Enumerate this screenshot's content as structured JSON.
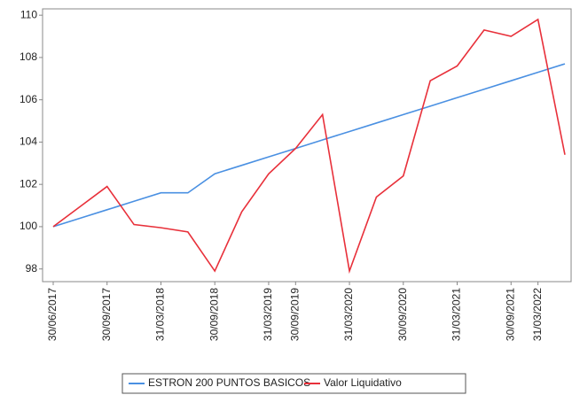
{
  "chart_data": {
    "type": "line",
    "categories": [
      "30/06/2017",
      null,
      "30/09/2017",
      null,
      "31/03/2018",
      null,
      "30/09/2018",
      null,
      "31/03/2019",
      "30/09/2019",
      null,
      "31/03/2020",
      null,
      "30/09/2020",
      null,
      "31/03/2021",
      null,
      "30/09/2021",
      "31/03/2022",
      null
    ],
    "series": [
      {
        "name": "ESTRON 200 PUNTOS BASICOS",
        "color": "#4a90e2",
        "values": [
          100.0,
          100.4,
          100.8,
          101.2,
          101.6,
          101.6,
          102.5,
          102.9,
          103.3,
          103.7,
          104.1,
          104.5,
          104.9,
          105.3,
          105.7,
          106.1,
          106.5,
          106.9,
          107.3,
          107.7
        ]
      },
      {
        "name": "Valor Liquidativo",
        "color": "#e8303a",
        "values": [
          100.0,
          100.95,
          101.9,
          100.1,
          99.95,
          99.75,
          97.9,
          100.7,
          102.5,
          103.7,
          105.3,
          97.9,
          101.4,
          102.4,
          106.9,
          107.6,
          109.3,
          109.0,
          109.8,
          103.4
        ]
      }
    ],
    "ylim": [
      97.4,
      110.3
    ],
    "yticks": [
      98,
      100,
      102,
      104,
      106,
      108,
      110
    ],
    "grid": false,
    "legend": "bottom"
  }
}
